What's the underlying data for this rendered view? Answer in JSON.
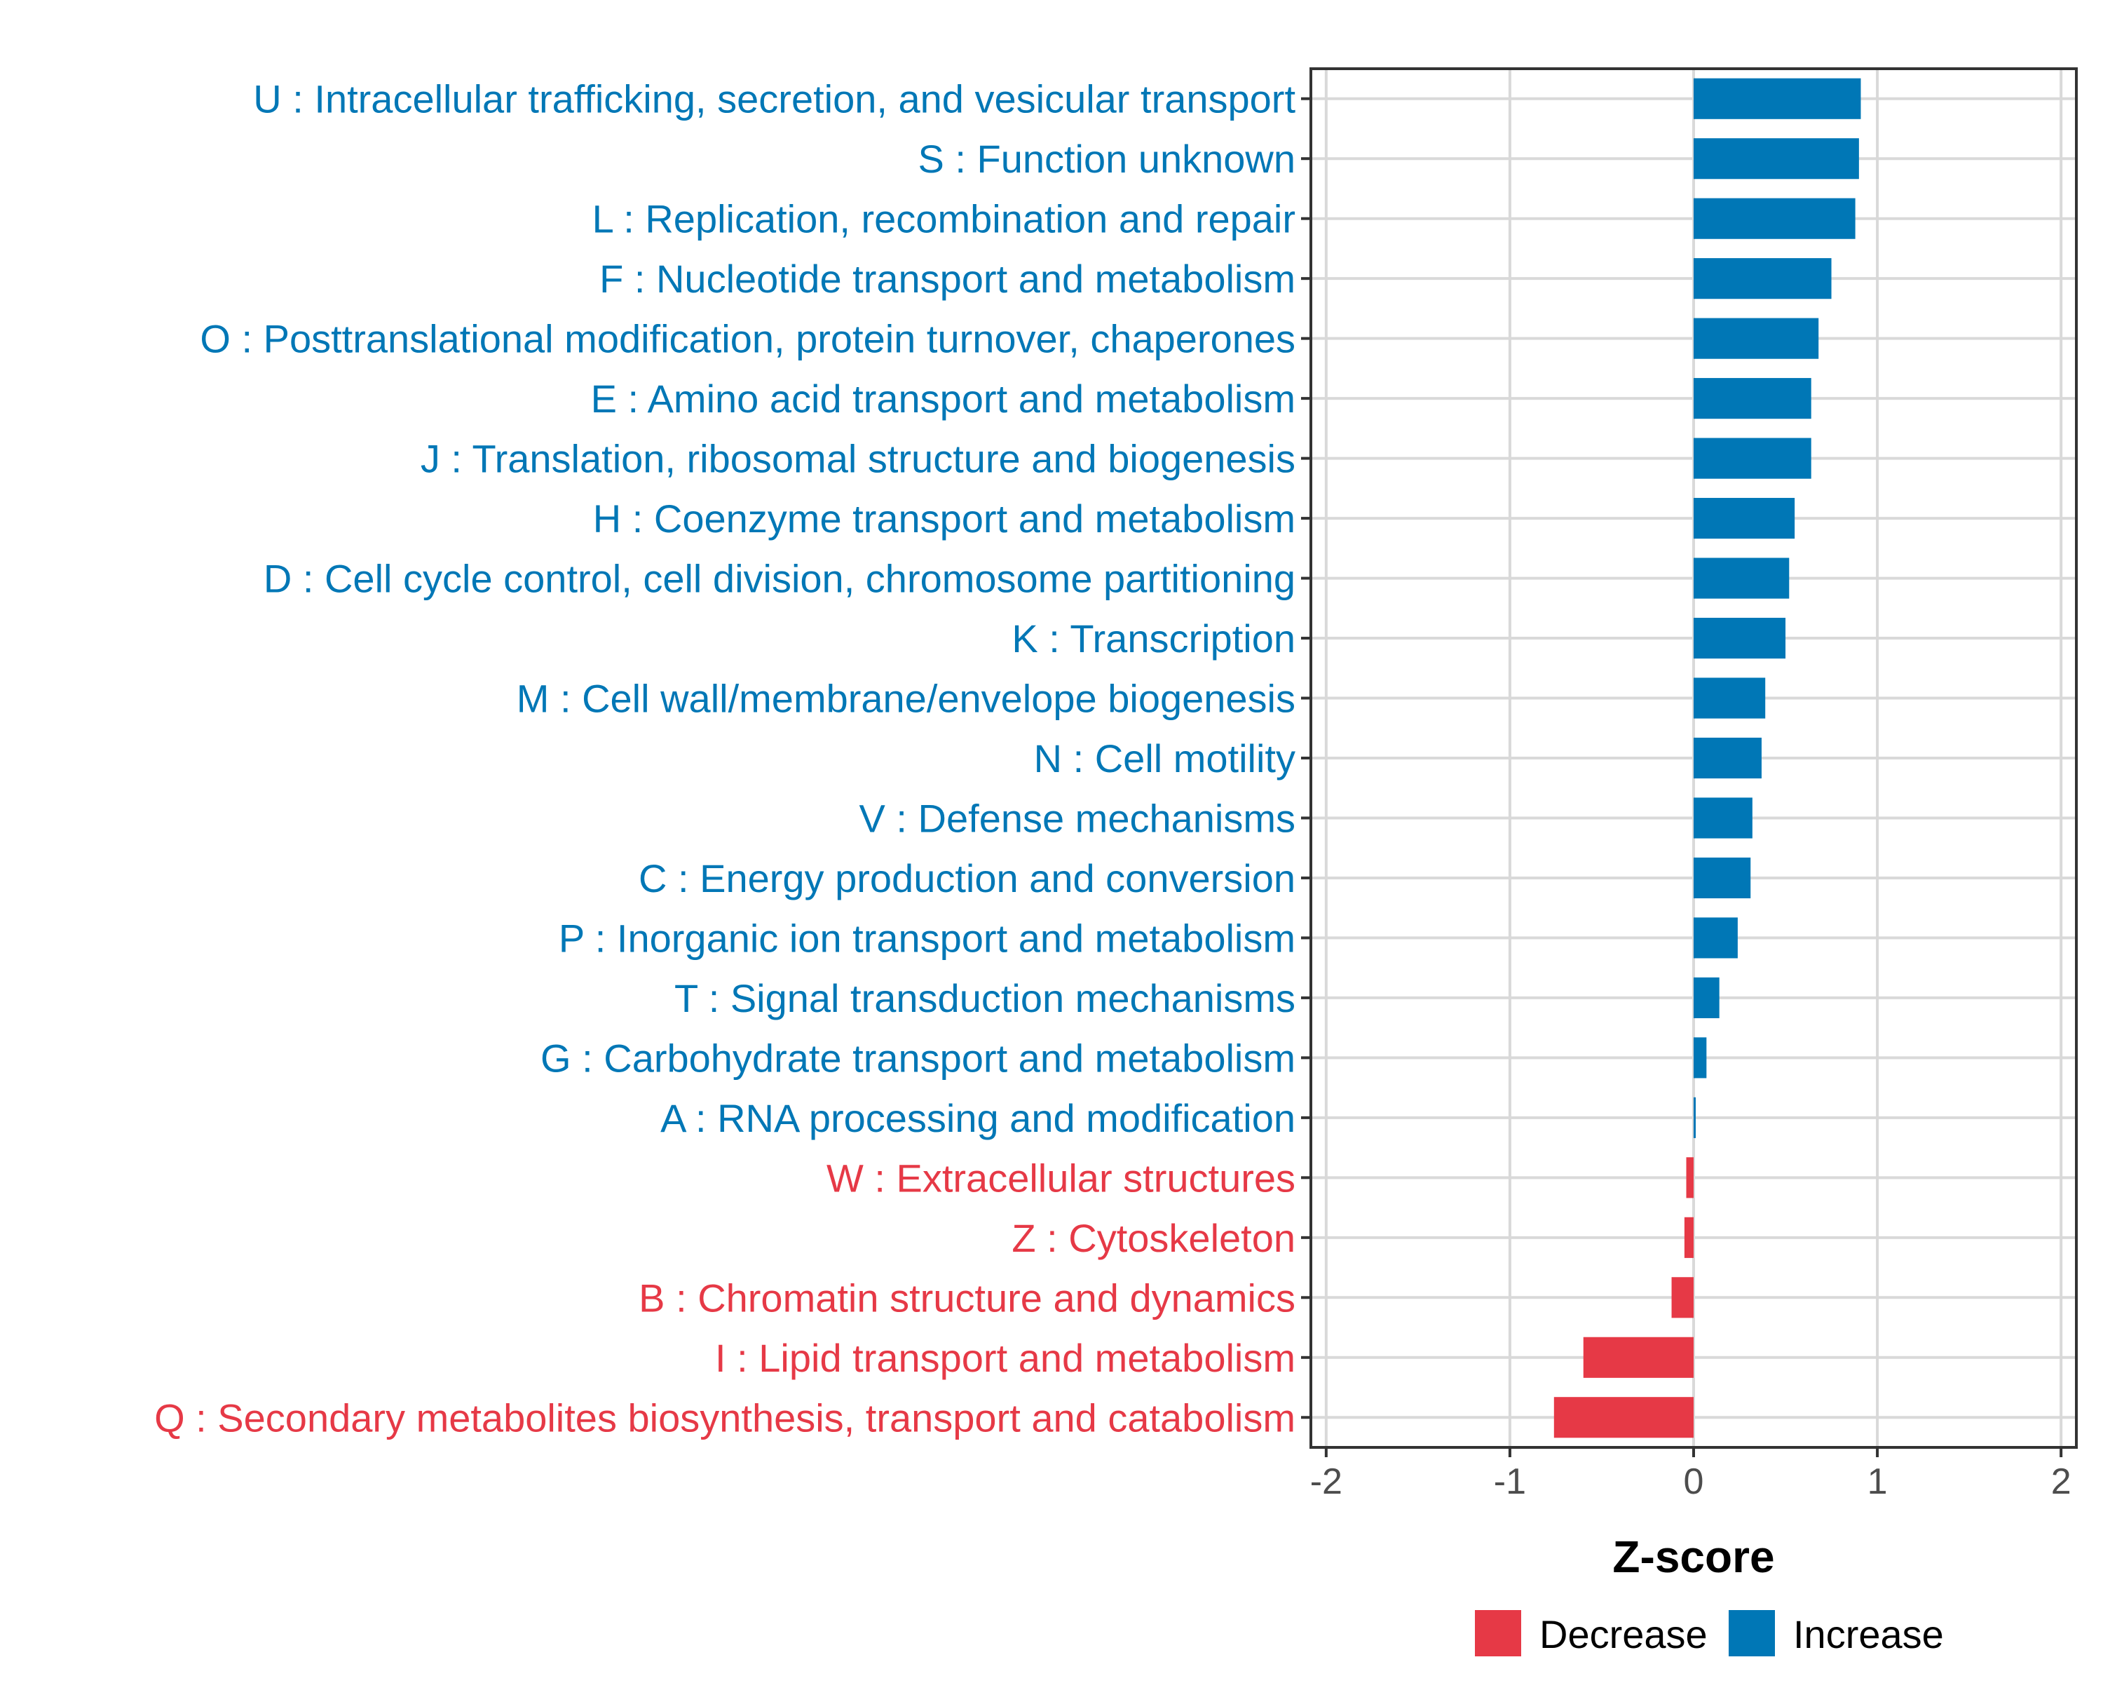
{
  "chart_data": {
    "type": "bar",
    "orientation": "horizontal",
    "xlabel": "Z-score",
    "xlim": [
      -2,
      2
    ],
    "xticks": [
      "-2",
      "-1",
      "0",
      "1",
      "2"
    ],
    "colors": {
      "Decrease": "#e63946",
      "Increase": "#0077b6"
    },
    "categories": [
      "U : Intracellular trafficking, secretion, and vesicular transport",
      "S : Function unknown",
      "L : Replication, recombination and repair",
      "F : Nucleotide transport and metabolism",
      "O : Posttranslational modification, protein turnover, chaperones",
      "E : Amino acid transport and metabolism",
      "J : Translation, ribosomal structure and biogenesis",
      "H : Coenzyme transport and metabolism",
      "D : Cell cycle control, cell division, chromosome partitioning",
      "K : Transcription",
      "M : Cell wall/membrane/envelope biogenesis",
      "N : Cell motility",
      "V : Defense mechanisms",
      "C : Energy production and conversion",
      "P : Inorganic ion transport and metabolism",
      "T : Signal transduction mechanisms",
      "G : Carbohydrate transport and metabolism",
      "A : RNA processing and modification",
      "W : Extracellular structures",
      "Z : Cytoskeleton",
      "B : Chromatin structure and dynamics",
      "I : Lipid transport and metabolism",
      "Q : Secondary metabolites biosynthesis, transport and catabolism"
    ],
    "values": [
      0.91,
      0.9,
      0.88,
      0.75,
      0.68,
      0.64,
      0.64,
      0.55,
      0.52,
      0.5,
      0.39,
      0.37,
      0.32,
      0.31,
      0.24,
      0.14,
      0.07,
      0.01,
      -0.04,
      -0.05,
      -0.12,
      -0.6,
      -0.76
    ],
    "groups": [
      "Increase",
      "Increase",
      "Increase",
      "Increase",
      "Increase",
      "Increase",
      "Increase",
      "Increase",
      "Increase",
      "Increase",
      "Increase",
      "Increase",
      "Increase",
      "Increase",
      "Increase",
      "Increase",
      "Increase",
      "Increase",
      "Decrease",
      "Decrease",
      "Decrease",
      "Decrease",
      "Decrease"
    ],
    "legend": [
      "Decrease",
      "Increase"
    ],
    "legend_position": "bottom"
  }
}
